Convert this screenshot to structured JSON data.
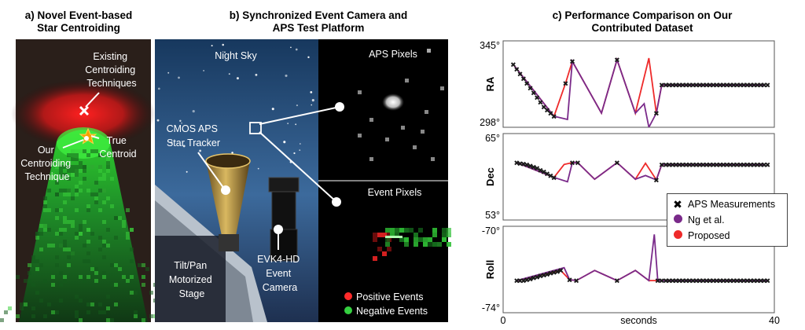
{
  "panel_a": {
    "title": "a) Novel Event-based\nStar Centroiding",
    "label_existing": [
      "Existing",
      "Centroiding",
      "Techniques"
    ],
    "label_ours": [
      "Our",
      "Centroiding",
      "Technique"
    ],
    "label_true": [
      "True",
      "Centroid"
    ]
  },
  "panel_b": {
    "title": "b) Synchronized Event Camera and\nAPS Test Platform",
    "night_sky": "Night Sky",
    "cmos": [
      "CMOS APS",
      "Star Tracker"
    ],
    "stage": [
      "Tilt/Pan",
      "Motorized",
      "Stage"
    ],
    "evk": [
      "EVK4-HD",
      "Event",
      "Camera"
    ],
    "aps_pixels": "APS Pixels",
    "event_pixels": "Event Pixels",
    "positive": "Positive Events",
    "negative": "Negative Events",
    "colors": {
      "positive": "#ff2a2a",
      "negative": "#35d040"
    }
  },
  "panel_c": {
    "title": "c) Performance Comparison on Our\nContributed Dataset",
    "legend": {
      "aps": "APS Measurements",
      "ng": "Ng et al.",
      "proposed": "Proposed"
    },
    "colors": {
      "aps": "#1a1a1a",
      "ng": "#7a2a8a",
      "proposed": "#ee2a2a"
    }
  },
  "chart_data": {
    "type": "line",
    "xlabel": "seconds",
    "xlim": [
      0,
      40
    ],
    "x_ticks": [
      "0",
      "40"
    ],
    "subplots": [
      {
        "name": "RA",
        "ylim_labels": [
          "345°",
          "298°"
        ],
        "ylim": [
          298,
          345
        ],
        "aps_x": [
          1.5,
          2,
          2.5,
          3,
          3.5,
          4,
          4.5,
          5,
          5.5,
          6,
          6.5,
          7,
          7.5,
          9.2,
          10.2,
          16.8,
          22.6,
          23.4,
          24,
          24.5,
          25,
          25.5,
          26,
          26.5,
          27,
          27.5,
          28,
          28.5,
          29,
          29.5,
          30,
          30.5,
          31,
          31.5,
          32,
          32.5,
          33,
          33.5,
          34,
          34.5,
          35,
          35.5,
          36,
          36.5,
          37,
          37.5,
          38,
          38.5,
          39
        ],
        "aps_y": [
          334,
          331,
          328,
          325,
          322,
          319,
          316,
          313,
          310,
          307,
          305,
          303,
          301,
          322,
          336,
          337,
          303,
          321,
          321,
          321,
          321,
          321,
          321,
          321,
          321,
          321,
          321,
          321,
          321,
          321,
          321,
          321,
          321,
          321,
          321,
          321,
          321,
          321,
          321,
          321,
          321,
          321,
          321,
          321,
          321,
          321,
          321,
          321,
          321
        ],
        "ng_x": [
          1.5,
          7.5,
          9.5,
          10.2,
          14.5,
          16.8,
          19.5,
          20.8,
          21.5,
          22.6,
          23.4,
          38.5
        ],
        "ng_y": [
          334,
          301,
          299,
          336,
          303,
          337,
          303,
          309,
          294,
          303,
          321,
          321
        ],
        "proposed_x": [
          1.5,
          7.5,
          9.2,
          10.2,
          14.5,
          16.8,
          19.5,
          21.5,
          22.6,
          23.4,
          38.5
        ],
        "proposed_y": [
          334,
          301,
          322,
          336,
          303,
          337,
          303,
          338,
          303,
          321,
          321
        ]
      },
      {
        "name": "Dec",
        "ylim_labels": [
          "65°",
          "53°"
        ],
        "ylim": [
          53,
          65
        ],
        "aps_x": [
          2,
          2.5,
          3,
          3.5,
          4,
          4.5,
          5,
          5.5,
          6,
          6.5,
          7,
          7.5,
          10.2,
          11,
          16.8,
          22.6,
          23.4,
          24,
          24.5,
          25,
          25.5,
          26,
          26.5,
          27,
          27.5,
          28,
          28.5,
          29,
          29.5,
          30,
          30.5,
          31,
          31.5,
          32,
          32.5,
          33,
          33.5,
          34,
          34.5,
          35,
          35.5,
          36,
          36.5,
          37,
          37.5,
          38,
          38.5,
          39
        ],
        "aps_y": [
          61.3,
          61.2,
          61.1,
          61,
          60.8,
          60.6,
          60.4,
          60.1,
          59.8,
          59.5,
          59.2,
          58.9,
          61.3,
          61.3,
          61.3,
          58.5,
          61,
          61,
          61,
          61,
          61,
          61,
          61,
          61,
          61,
          61,
          61,
          61,
          61,
          61,
          61,
          61,
          61,
          61,
          61,
          61,
          61,
          61,
          61,
          61,
          61,
          61,
          61,
          61,
          61,
          61,
          61,
          61
        ],
        "ng_x": [
          2,
          7.5,
          9.5,
          10.2,
          11,
          13.5,
          16.8,
          19.5,
          21,
          22.6,
          23.4,
          38.5
        ],
        "ng_y": [
          61.3,
          58.9,
          58.2,
          61.3,
          61.3,
          58.6,
          61.3,
          58.6,
          59.2,
          58.5,
          61,
          61
        ],
        "proposed_x": [
          2,
          7.5,
          9,
          10.2,
          11,
          13.5,
          16.8,
          19.5,
          21,
          22.6,
          23.4,
          38.5
        ],
        "proposed_y": [
          61.3,
          58.9,
          61,
          61.3,
          61.3,
          58.6,
          61.3,
          58.6,
          61.2,
          58.5,
          61,
          61
        ]
      },
      {
        "name": "Roll",
        "ylim_labels": [
          "-70°",
          "-74°"
        ],
        "ylim": [
          -74,
          -70
        ],
        "aps_x": [
          2,
          2.5,
          3,
          3.5,
          4,
          4.5,
          5,
          5.5,
          6,
          6.5,
          7,
          7.5,
          8,
          8.5,
          9.8,
          10.8,
          16.8,
          22.8,
          23.4,
          24,
          24.5,
          25,
          25.5,
          26,
          26.5,
          27,
          27.5,
          28,
          28.5,
          29,
          29.5,
          30,
          30.5,
          31,
          31.5,
          32,
          32.5,
          33,
          33.5,
          34,
          34.5,
          35,
          35.5,
          36,
          36.5,
          37,
          37.5,
          38,
          38.5,
          39
        ],
        "aps_y": [
          -72.6,
          -72.6,
          -72.6,
          -72.55,
          -72.5,
          -72.45,
          -72.4,
          -72.35,
          -72.3,
          -72.25,
          -72.2,
          -72.15,
          -72.1,
          -72.05,
          -72.55,
          -72.6,
          -72.6,
          -72.6,
          -72.6,
          -72.6,
          -72.6,
          -72.6,
          -72.6,
          -72.6,
          -72.6,
          -72.6,
          -72.6,
          -72.6,
          -72.6,
          -72.6,
          -72.6,
          -72.6,
          -72.6,
          -72.6,
          -72.6,
          -72.6,
          -72.6,
          -72.6,
          -72.6,
          -72.6,
          -72.6,
          -72.6,
          -72.6,
          -72.6,
          -72.6,
          -72.6,
          -72.6,
          -72.6,
          -72.6,
          -72.6
        ],
        "ng_x": [
          2,
          9,
          9.8,
          10.8,
          13.5,
          16.8,
          19.5,
          21.5,
          22.3,
          22.8,
          23.4,
          39
        ],
        "ng_y": [
          -72.6,
          -71.9,
          -72.55,
          -72.6,
          -72.05,
          -72.6,
          -72.05,
          -72.6,
          -70.1,
          -72.6,
          -72.6,
          -72.6
        ],
        "proposed_x": [
          2,
          8.5,
          9.8,
          10.8,
          13.5,
          16.8,
          19.5,
          21.5,
          22.8,
          23.4,
          39
        ],
        "proposed_y": [
          -72.6,
          -72.05,
          -72.55,
          -72.6,
          -72.05,
          -72.6,
          -72.05,
          -72.6,
          -72.6,
          -72.6,
          -72.6
        ]
      }
    ]
  }
}
